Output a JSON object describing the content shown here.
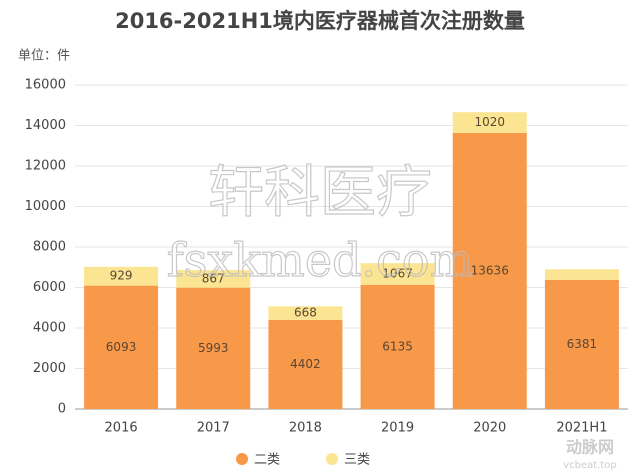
{
  "chart_data": {
    "type": "stacked-bar",
    "title": "2016-2021H1境内医疗器械首次注册数量",
    "y_label": "单位：件",
    "categories": [
      "2016",
      "2017",
      "2018",
      "2019",
      "2020",
      "2021H1"
    ],
    "series": [
      {
        "name": "二类",
        "color": "#f8994a",
        "values": [
          6093,
          5993,
          4402,
          6135,
          13636,
          6381
        ]
      },
      {
        "name": "三类",
        "color": "#fce592",
        "values": [
          929,
          867,
          668,
          1067,
          1020,
          520
        ],
        "value_labels": [
          "929",
          "867",
          "668",
          "1067",
          "1020",
          null
        ]
      }
    ],
    "ylim": [
      0,
      16000
    ],
    "yticks": [
      0,
      2000,
      4000,
      6000,
      8000,
      10000,
      12000,
      14000,
      16000
    ],
    "grid": true,
    "legend": "bottom",
    "watermarks": [
      "轩科医疗",
      "fsxkmed.com",
      "动脉网",
      "vcbeat.top"
    ]
  }
}
